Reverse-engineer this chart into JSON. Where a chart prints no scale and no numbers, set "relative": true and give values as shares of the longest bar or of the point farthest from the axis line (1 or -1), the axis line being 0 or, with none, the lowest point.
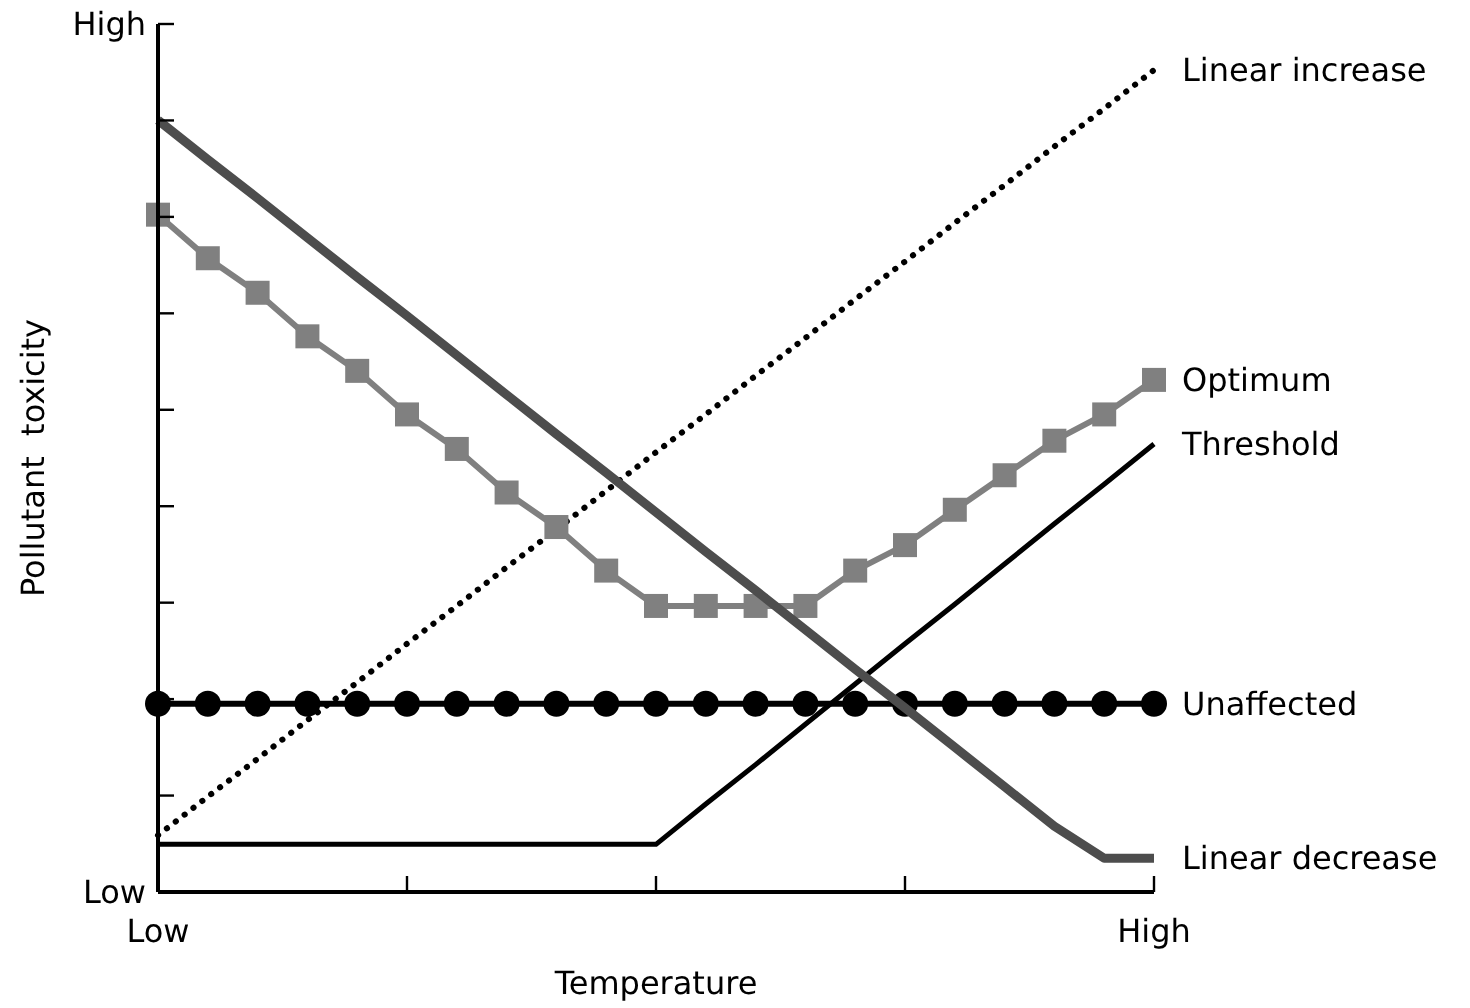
{
  "chart_data": {
    "type": "line",
    "xlabel": "Temperature",
    "ylabel": "Pollutant  toxicity",
    "relative": true,
    "categories": [
      "Low",
      null,
      null,
      null,
      null,
      null,
      null,
      null,
      null,
      null,
      null,
      null,
      null,
      null,
      null,
      null,
      null,
      null,
      null,
      null,
      "High"
    ],
    "annotations": [
      "Low",
      "High"
    ],
    "series": [
      {
        "name": "Linear increase",
        "color": "#000000",
        "line_style": "dotted",
        "marker": "none",
        "values": [
          0.069,
          0.116,
          0.162,
          0.209,
          0.255,
          0.302,
          0.348,
          0.395,
          0.441,
          0.488,
          0.535,
          0.581,
          0.628,
          0.674,
          0.721,
          0.767,
          0.814,
          0.86,
          0.907,
          0.953,
          1
        ]
      },
      {
        "name": "Optimum",
        "color": "#808080",
        "line_style": "solid",
        "marker": "square",
        "values": [
          0.824,
          0.771,
          0.729,
          0.676,
          0.634,
          0.581,
          0.539,
          0.486,
          0.444,
          0.391,
          0.348,
          0.348,
          0.348,
          0.348,
          0.391,
          0.422,
          0.465,
          0.507,
          0.549,
          0.581,
          0.623
        ]
      },
      {
        "name": "Threshold",
        "color": "#000000",
        "line_style": "solid",
        "marker": "none",
        "values": [
          0.058,
          0.058,
          0.058,
          0.058,
          0.058,
          0.058,
          0.058,
          0.058,
          0.058,
          0.058,
          0.058,
          0.107,
          0.155,
          0.204,
          0.253,
          0.302,
          0.35,
          0.399,
          0.448,
          0.496,
          0.545
        ]
      },
      {
        "name": "Unaffected",
        "color": "#000000",
        "line_style": "solid",
        "marker": "circle",
        "values": [
          0.229,
          0.229,
          0.229,
          0.229,
          0.229,
          0.229,
          0.229,
          0.229,
          0.229,
          0.229,
          0.229,
          0.229,
          0.229,
          0.229,
          0.229,
          0.229,
          0.229,
          0.229,
          0.229,
          0.229,
          0.229
        ]
      },
      {
        "name": "Linear decrease",
        "color": "#4d4d4d",
        "line_style": "solid",
        "marker": "none",
        "values": [
          0.939,
          0.891,
          0.844,
          0.796,
          0.748,
          0.701,
          0.653,
          0.605,
          0.557,
          0.51,
          0.462,
          0.414,
          0.367,
          0.319,
          0.271,
          0.224,
          0.176,
          0.128,
          0.08,
          0.041,
          0.041
        ]
      }
    ]
  }
}
